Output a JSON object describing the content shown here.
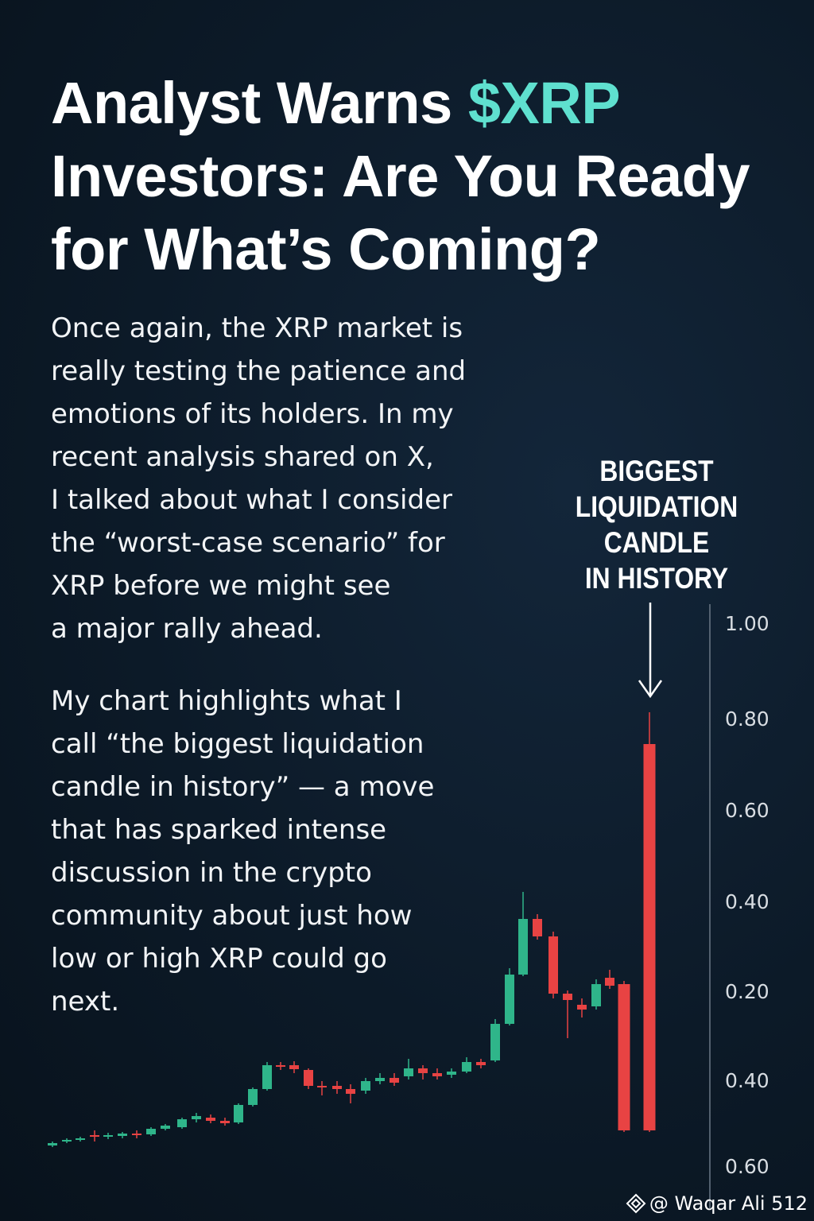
{
  "title": {
    "line1": "Analyst Warns",
    "highlight": "$XRP",
    "line2": "Investors: Are You Ready",
    "line3": "for What’s Coming?"
  },
  "paragraphs": [
    [
      "Once again, the XRP market is",
      "really testing the patience and",
      "emotions of its holders. In my",
      "recent analysis shared on X,",
      "I talked about what I consider",
      "the “worst-case scenario” for",
      "XRP before we might see",
      "a major rally ahead."
    ],
    [
      "My chart highlights what I",
      "call “the biggest liquidation",
      "candle in history” — a move",
      "that has sparked intense",
      "discussion in the crypto",
      "community about just how",
      "low or high XRP could go",
      "next."
    ]
  ],
  "annotation": [
    "BIGGEST",
    "LIQUIDATION",
    "CANDLE",
    "IN HISTORY"
  ],
  "axis_labels": [
    "1.00",
    "0.80",
    "0.60",
    "0.40",
    "0.20",
    "0.40",
    "0.60"
  ],
  "watermark": "@ Waqar Ali 512"
}
